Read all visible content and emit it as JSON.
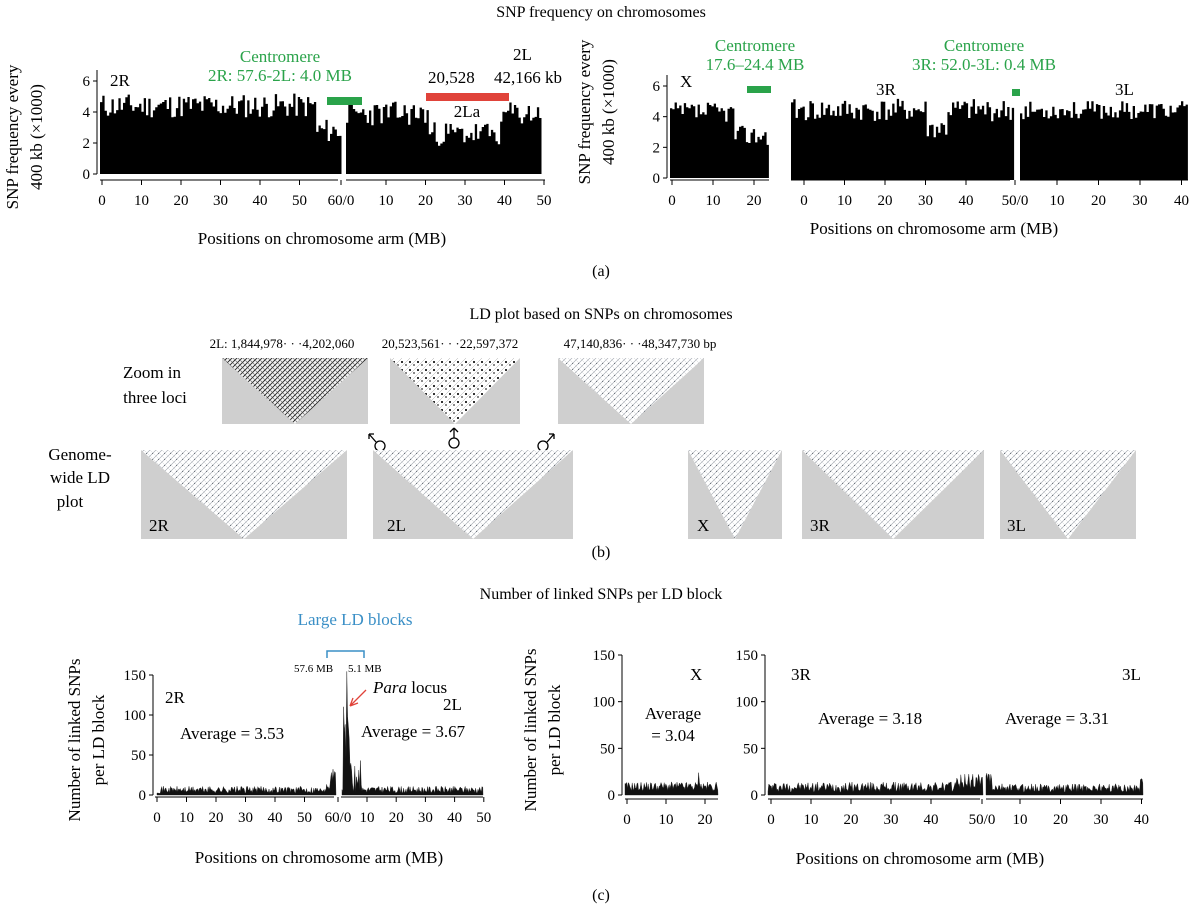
{
  "figure": {
    "panel_a_title": "SNP frequency on chromosomes",
    "panel_a_label": "(a)",
    "panel_b_title": "LD plot based on SNPs on chromosomes",
    "panel_b_label": "(b)",
    "panel_c_title": "Number of linked SNPs per LD block",
    "panel_c_label": "(c)",
    "xlabel": "Positions on chromosome arm (MB)",
    "a_ylabel_1": "SNP frequency every",
    "a_ylabel_2": "400 kb (×1000)",
    "c_ylabel_1": "Number of linked SNPs",
    "c_ylabel_2": "per LD block"
  },
  "panel_a": {
    "left": {
      "arm_2R": "2R",
      "arm_2L": "2L",
      "centromere_title": "Centromere",
      "centromere_detail": "2R: 57.6-2L: 4.0 MB",
      "inversion_start": "20,528",
      "inversion_end": "42,166 kb",
      "inversion_name": "2La",
      "yticks": [
        "0",
        "2",
        "4",
        "6"
      ],
      "xticks_2R": [
        "0",
        "10",
        "20",
        "30",
        "40",
        "50"
      ],
      "xtick_join": "60/0",
      "xticks_2L": [
        "10",
        "20",
        "30",
        "40",
        "50"
      ],
      "centromere_color": "#2aa34a",
      "inversion_color": "#e0433a"
    },
    "right": {
      "arm_X": "X",
      "arm_3R": "3R",
      "arm_3L": "3L",
      "x_centromere_title": "Centromere",
      "x_centromere_detail": "17.6–24.4 MB",
      "c3_centromere_title": "Centromere",
      "c3_centromere_detail": "3R: 52.0-3L: 0.4 MB",
      "yticks": [
        "0",
        "2",
        "4",
        "6"
      ],
      "xticks_X": [
        "0",
        "10",
        "20"
      ],
      "xticks_3R": [
        "0",
        "10",
        "20",
        "30",
        "40"
      ],
      "xtick_join": "50/0",
      "xticks_3L": [
        "10",
        "20",
        "30",
        "40"
      ]
    }
  },
  "panel_b": {
    "zoom_label_1": "Zoom in",
    "zoom_label_2": "three loci",
    "genome_label_1": "Genome-",
    "genome_label_2": "wide LD",
    "genome_label_3": "plot",
    "locus_1": "2L: 1,844,978· · ·4,202,060",
    "locus_2": "20,523,561· · ·22,597,372",
    "locus_3": "47,140,836· · ·48,347,730 bp",
    "arm_labels": [
      "2R",
      "2L",
      "X",
      "3R",
      "3L"
    ]
  },
  "panel_c": {
    "large_ld": "Large LD blocks",
    "bracket_left": "57.6 MB",
    "bracket_right": "5.1 MB",
    "para_italic": "Para",
    "para_rest": " locus",
    "arm_2R": "2R",
    "arm_2L": "2L",
    "avg_2R": "Average  =  3.53",
    "avg_2L": "Average  =  3.67",
    "arm_X": "X",
    "avg_X_1": "Average",
    "avg_X_2": "=  3.04",
    "arm_3R": "3R",
    "arm_3L": "3L",
    "avg_3R": "Average  =  3.18",
    "avg_3L": "Average  =  3.31",
    "yticks": [
      "0",
      "50",
      "100",
      "150"
    ],
    "xticks_2R": [
      "0",
      "10",
      "20",
      "30",
      "40",
      "50"
    ],
    "xtick_join_2": "60/0",
    "xticks_2L": [
      "10",
      "20",
      "30",
      "40",
      "50"
    ],
    "xticks_X": [
      "0",
      "10",
      "20"
    ],
    "xticks_3R": [
      "0",
      "10",
      "20",
      "30",
      "40"
    ],
    "xtick_join_3": "50/0",
    "xticks_3L": [
      "10",
      "20",
      "30",
      "40"
    ]
  },
  "chart_data": [
    {
      "type": "bar",
      "title": "SNP frequency on chromosomes",
      "ylabel": "SNP frequency every 400 kb (×1000)",
      "xlabel": "Positions on chromosome arm (MB)",
      "ylim": [
        0,
        6
      ],
      "series": [
        {
          "name": "2R",
          "x_range_mb": [
            0,
            61
          ],
          "approx_level": 4.5
        },
        {
          "name": "2L",
          "x_range_mb": [
            0,
            49
          ],
          "approx_level": 3.5
        }
      ]
    },
    {
      "type": "bar",
      "ylabel": "SNP frequency every 400 kb (×1000)",
      "xlabel": "Positions on chromosome arm (MB)",
      "ylim": [
        0,
        6
      ],
      "series": [
        {
          "name": "X",
          "x_range_mb": [
            0,
            24
          ],
          "approx_level": 4.3
        },
        {
          "name": "3R",
          "x_range_mb": [
            0,
            53
          ],
          "approx_level": 4.5
        },
        {
          "name": "3L",
          "x_range_mb": [
            0,
            42
          ],
          "approx_level": 4.5
        }
      ]
    },
    {
      "type": "area",
      "title": "Number of linked SNPs per LD block",
      "ylabel": "Number of linked SNPs per LD block",
      "xlabel": "Positions on chromosome arm (MB)",
      "ylim": [
        0,
        150
      ],
      "series": [
        {
          "name": "2R",
          "average": 3.53
        },
        {
          "name": "2L",
          "average": 3.67
        }
      ]
    },
    {
      "type": "area",
      "ylabel": "Number of linked SNPs per LD block",
      "xlabel": "Positions on chromosome arm (MB)",
      "ylim": [
        0,
        150
      ],
      "series": [
        {
          "name": "X",
          "average": 3.04
        },
        {
          "name": "3R",
          "average": 3.18
        },
        {
          "name": "3L",
          "average": 3.31
        }
      ]
    }
  ]
}
